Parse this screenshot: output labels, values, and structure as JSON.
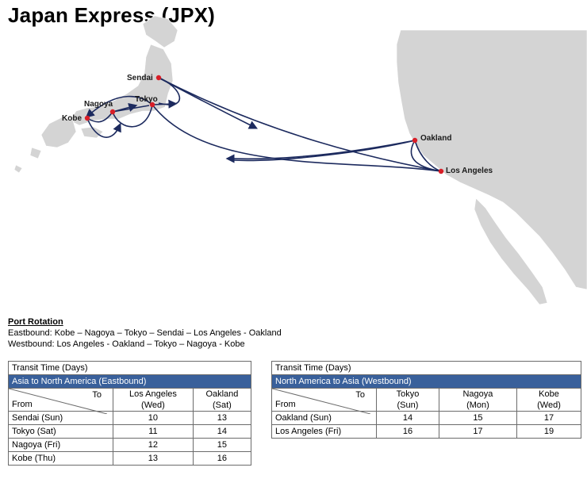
{
  "title": "Japan Express (JPX)",
  "ports": {
    "sendai": "Sendai",
    "nagoya": "Nagoya",
    "tokyo": "Tokyo",
    "kobe": "Kobe",
    "oakland": "Oakland",
    "los_angeles": "Los Angeles"
  },
  "rotation": {
    "heading": "Port Rotation",
    "eastbound": "Eastbound: Kobe – Nagoya – Tokyo – Sendai – Los Angeles - Oakland",
    "westbound": "Westbound: Los Angeles - Oakland – Tokyo – Nagoya - Kobe"
  },
  "tables": [
    {
      "title": "Transit Time (Days)",
      "subtitle": "Asia to North America (Eastbound)",
      "to_label": "To",
      "from_label": "From",
      "columns": [
        {
          "name": "Los Angeles",
          "day": "(Wed)"
        },
        {
          "name": "Oakland",
          "day": "(Sat)"
        }
      ],
      "rows": [
        {
          "from": "Sendai (Sun)",
          "values": [
            "10",
            "13"
          ]
        },
        {
          "from": "Tokyo (Sat)",
          "values": [
            "11",
            "14"
          ]
        },
        {
          "from": "Nagoya (Fri)",
          "values": [
            "12",
            "15"
          ]
        },
        {
          "from": "Kobe (Thu)",
          "values": [
            "13",
            "16"
          ]
        }
      ]
    },
    {
      "title": "Transit Time (Days)",
      "subtitle": "North America to Asia (Westbound)",
      "to_label": "To",
      "from_label": "From",
      "columns": [
        {
          "name": "Tokyo",
          "day": "(Sun)"
        },
        {
          "name": "Nagoya",
          "day": "(Mon)"
        },
        {
          "name": "Kobe",
          "day": "(Wed)"
        }
      ],
      "rows": [
        {
          "from": "Oakland (Sun)",
          "values": [
            "14",
            "15",
            "17"
          ]
        },
        {
          "from": "Los Angeles (Fri)",
          "values": [
            "16",
            "17",
            "19"
          ]
        }
      ]
    }
  ],
  "colors": {
    "route": "#1c2a5e",
    "port_dot": "#d81e27",
    "land": "#d4d4d4",
    "table_subheader": "#39609b"
  }
}
